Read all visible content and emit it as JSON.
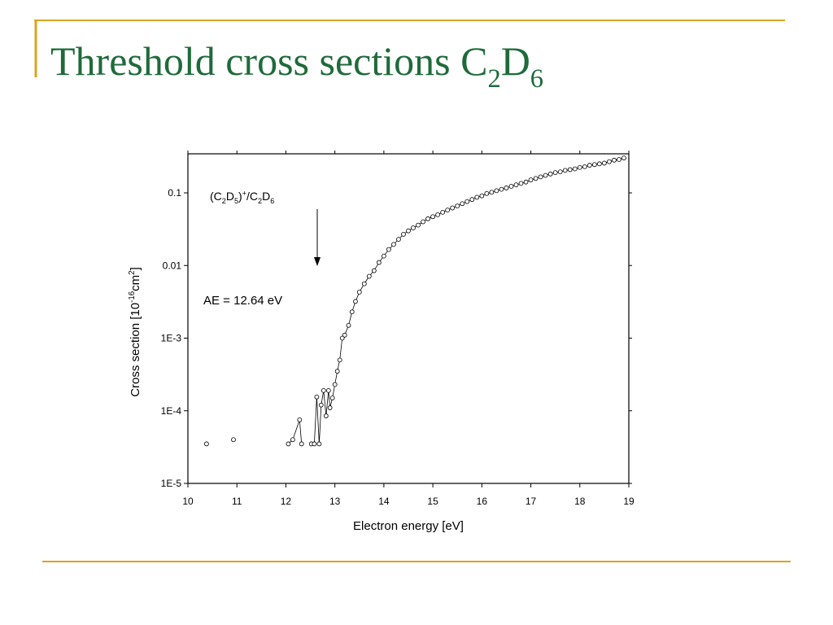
{
  "slide": {
    "title": [
      {
        "text": "Threshold cross sections C"
      },
      {
        "text": "2",
        "script": "sub"
      },
      {
        "text": "D"
      },
      {
        "text": "6",
        "script": "sub"
      }
    ]
  },
  "chart_data": {
    "type": "scatter",
    "x_label": "Electron energy [eV]",
    "y_label": [
      {
        "text": "Cross section [10"
      },
      {
        "text": "-16",
        "script": "sup"
      },
      {
        "text": "cm"
      },
      {
        "text": "2",
        "script": "sup"
      },
      {
        "text": "]"
      }
    ],
    "annotations": [
      {
        "parts": [
          {
            "text": "(C"
          },
          {
            "text": "2",
            "script": "sub"
          },
          {
            "text": "D"
          },
          {
            "text": "5",
            "script": "sub"
          },
          {
            "text": ")"
          },
          {
            "text": "+",
            "script": "sup"
          },
          {
            "text": "/C"
          },
          {
            "text": "2",
            "script": "sub"
          },
          {
            "text": "D"
          },
          {
            "text": "6",
            "script": "sub"
          }
        ]
      },
      {
        "parts": [
          {
            "text": "AE = 12.64 eV"
          }
        ]
      }
    ],
    "x": [
      10.38,
      10.93,
      12.05,
      12.14,
      12.28,
      12.32,
      12.52,
      12.58,
      12.63,
      12.68,
      12.72,
      12.77,
      12.82,
      12.87,
      12.9,
      12.95,
      13.0,
      13.05,
      13.1,
      13.15,
      13.2,
      13.28,
      13.35,
      13.42,
      13.5,
      13.6,
      13.7,
      13.8,
      13.9,
      14.0,
      14.1,
      14.2,
      14.3,
      14.4,
      14.5,
      14.6,
      14.7,
      14.8,
      14.9,
      15.0,
      15.1,
      15.2,
      15.3,
      15.4,
      15.5,
      15.6,
      15.7,
      15.8,
      15.9,
      16.0,
      16.1,
      16.2,
      16.3,
      16.4,
      16.5,
      16.6,
      16.7,
      16.8,
      16.9,
      17.0,
      17.1,
      17.2,
      17.3,
      17.4,
      17.5,
      17.6,
      17.7,
      17.8,
      17.9,
      18.0,
      18.1,
      18.2,
      18.3,
      18.4,
      18.5,
      18.6,
      18.7,
      18.8,
      18.9
    ],
    "y": [
      3.5e-05,
      4e-05,
      3.5e-05,
      4e-05,
      7.5e-05,
      3.5e-05,
      3.5e-05,
      3.5e-05,
      0.000155,
      3.5e-05,
      0.00012,
      0.00019,
      8.5e-05,
      0.00019,
      0.00011,
      0.00015,
      0.00023,
      0.00035,
      0.0005,
      0.001,
      0.0011,
      0.0015,
      0.0023,
      0.0032,
      0.0043,
      0.0056,
      0.0071,
      0.0085,
      0.011,
      0.0135,
      0.0166,
      0.0195,
      0.0229,
      0.0269,
      0.03,
      0.033,
      0.036,
      0.04,
      0.044,
      0.047,
      0.05,
      0.054,
      0.058,
      0.062,
      0.066,
      0.071,
      0.076,
      0.081,
      0.087,
      0.091,
      0.098,
      0.102,
      0.107,
      0.112,
      0.117,
      0.123,
      0.129,
      0.135,
      0.141,
      0.151,
      0.158,
      0.166,
      0.174,
      0.182,
      0.19,
      0.195,
      0.204,
      0.209,
      0.214,
      0.224,
      0.229,
      0.24,
      0.245,
      0.251,
      0.257,
      0.269,
      0.282,
      0.288,
      0.302
    ],
    "xlim": [
      10,
      19
    ],
    "ylim": [
      1e-05,
      0.345
    ],
    "yscale": "log",
    "xticks": [
      10,
      11,
      12,
      13,
      14,
      15,
      16,
      17,
      18,
      19
    ],
    "yticks": [
      {
        "value": 1e-05,
        "label": "1E-5"
      },
      {
        "value": 0.0001,
        "label": "1E-4"
      },
      {
        "value": 0.001,
        "label": "1E-3"
      },
      0.01,
      0.1
    ],
    "color": "#000000"
  }
}
